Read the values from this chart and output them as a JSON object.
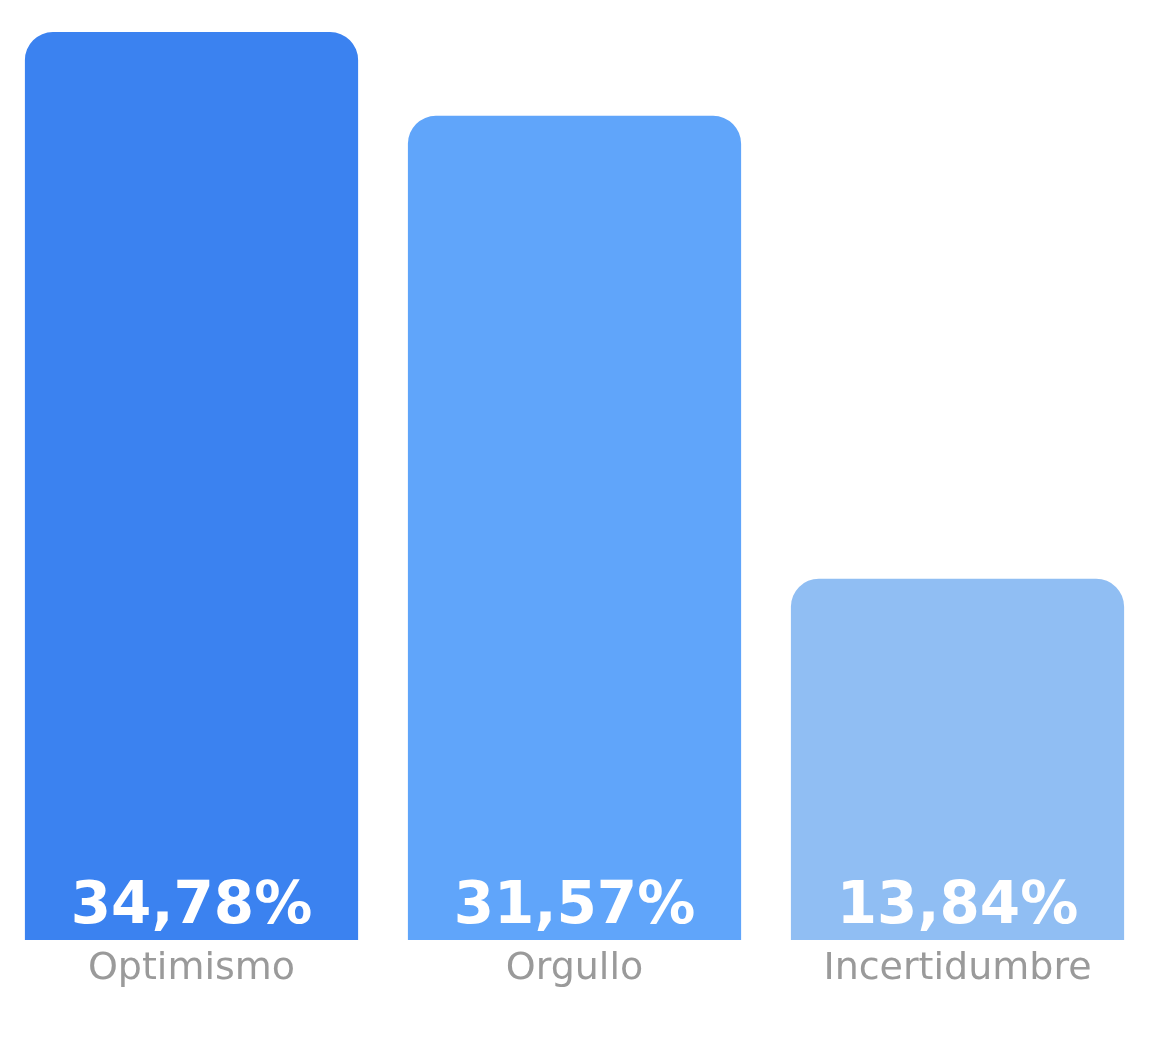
{
  "chart_data": {
    "type": "bar",
    "categories": [
      "Optimismo",
      "Orgullo",
      "Incertidumbre"
    ],
    "values": [
      34.78,
      31.57,
      13.84
    ],
    "colors": [
      "#3b82f0",
      "#60a5fa",
      "#90bef3"
    ],
    "value_labels": [
      "34,78%",
      "31,57%",
      "13,84%"
    ]
  }
}
